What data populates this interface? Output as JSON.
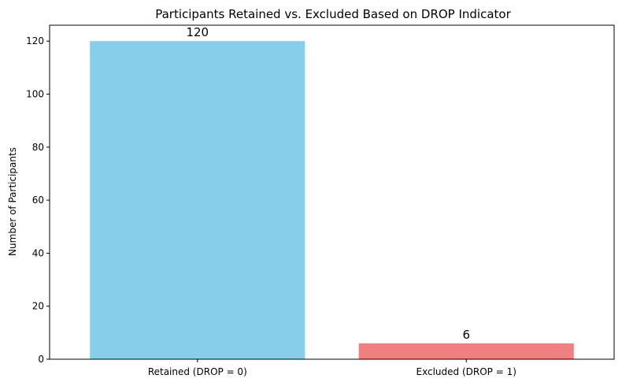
{
  "chart_data": {
    "type": "bar",
    "title": "Participants Retained vs. Excluded Based on DROP Indicator",
    "xlabel": "",
    "ylabel": "Number of Participants",
    "categories": [
      "Retained (DROP = 0)",
      "Excluded (DROP = 1)"
    ],
    "values": [
      120,
      6
    ],
    "value_labels": [
      "120",
      "6"
    ],
    "colors": [
      "#87CEEB",
      "#F08080"
    ],
    "ylim": [
      0,
      126
    ],
    "yticks": [
      0,
      20,
      40,
      60,
      80,
      100,
      120
    ],
    "ytick_labels": [
      "0",
      "20",
      "40",
      "60",
      "80",
      "100",
      "120"
    ],
    "grid": false,
    "legend": "none"
  }
}
